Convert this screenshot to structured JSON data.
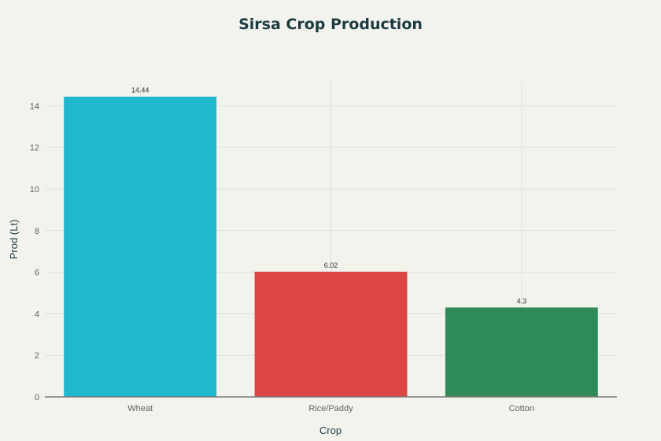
{
  "chart_data": {
    "type": "bar",
    "title": "Sirsa Crop Production",
    "xlabel": "Crop",
    "ylabel": "Prod (Lt)",
    "categories": [
      "Wheat",
      "Rice/Paddy",
      "Cotton"
    ],
    "values": [
      14.44,
      6.02,
      4.3
    ],
    "data_labels": [
      "14.44",
      "6.02",
      "4.3"
    ],
    "colors": [
      "#1fb8cd",
      "#db4545",
      "#2e8b57"
    ],
    "ylim": [
      0,
      15.15
    ],
    "yticks": [
      0,
      2,
      4,
      6,
      8,
      10,
      12,
      14
    ],
    "grid": true,
    "legend": "none"
  }
}
